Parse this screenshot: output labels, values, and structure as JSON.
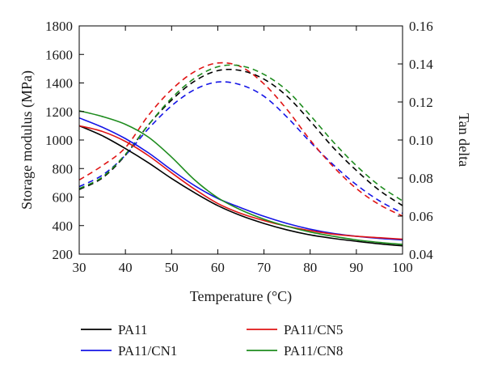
{
  "chart_data": {
    "type": "line",
    "title": "",
    "xlabel": "Temperature (°C)",
    "ylabel": "Storage modulus (MPa)",
    "y2label": "Tan delta",
    "xlim": [
      30,
      100
    ],
    "ylim": [
      200,
      1800
    ],
    "y2lim": [
      0.04,
      0.16
    ],
    "x_ticks": [
      "30",
      "40",
      "50",
      "60",
      "70",
      "80",
      "90",
      "100"
    ],
    "y_ticks": [
      "200",
      "400",
      "600",
      "800",
      "1000",
      "1200",
      "1400",
      "1600",
      "1800"
    ],
    "y2_ticks": [
      "0.04",
      "0.06",
      "0.08",
      "0.10",
      "0.12",
      "0.14",
      "0.16"
    ],
    "grid": false,
    "legend_position": "bottom",
    "x": [
      30,
      35,
      40,
      45,
      50,
      55,
      60,
      65,
      70,
      75,
      80,
      85,
      90,
      95,
      100
    ],
    "storage_modulus_series": [
      {
        "name": "PA11",
        "color": "#000000",
        "axis": "left",
        "values": [
          1100,
          1030,
          940,
          840,
          730,
          630,
          540,
          470,
          415,
          370,
          335,
          310,
          290,
          272,
          258
        ]
      },
      {
        "name": "PA11/CN1",
        "color": "#1414e6",
        "axis": "left",
        "values": [
          1155,
          1090,
          1010,
          910,
          790,
          680,
          590,
          525,
          465,
          415,
          375,
          345,
          325,
          310,
          300
        ]
      },
      {
        "name": "PA11/CN5",
        "color": "#e01414",
        "axis": "left",
        "values": [
          1100,
          1060,
          990,
          890,
          770,
          655,
          555,
          485,
          435,
          395,
          365,
          340,
          325,
          315,
          305
        ]
      },
      {
        "name": "PA11/CN8",
        "color": "#1e8c1e",
        "axis": "left",
        "values": [
          1205,
          1165,
          1110,
          1020,
          880,
          720,
          595,
          510,
          445,
          395,
          355,
          325,
          300,
          282,
          268
        ]
      }
    ],
    "tan_delta_series": [
      {
        "name": "PA11",
        "color": "#000000",
        "axis": "right",
        "values": [
          0.074,
          0.08,
          0.092,
          0.108,
          0.121,
          0.131,
          0.1365,
          0.1365,
          0.132,
          0.123,
          0.11,
          0.096,
          0.084,
          0.0735,
          0.0655
        ]
      },
      {
        "name": "PA11/CN1",
        "color": "#1414e6",
        "axis": "right",
        "values": [
          0.0755,
          0.0815,
          0.092,
          0.106,
          0.118,
          0.1265,
          0.1305,
          0.129,
          0.123,
          0.112,
          0.099,
          0.087,
          0.0765,
          0.068,
          0.0615
        ]
      },
      {
        "name": "PA11/CN5",
        "color": "#e01414",
        "axis": "right",
        "values": [
          0.079,
          0.0865,
          0.096,
          0.113,
          0.1265,
          0.136,
          0.1405,
          0.1385,
          0.1295,
          0.116,
          0.1,
          0.086,
          0.0745,
          0.066,
          0.06
        ]
      },
      {
        "name": "PA11/CN8",
        "color": "#1e8c1e",
        "axis": "right",
        "values": [
          0.0745,
          0.0805,
          0.0925,
          0.108,
          0.122,
          0.1325,
          0.1385,
          0.139,
          0.1345,
          0.126,
          0.113,
          0.099,
          0.0865,
          0.076,
          0.068
        ]
      }
    ],
    "legend": [
      {
        "name": "PA11",
        "color": "#000000"
      },
      {
        "name": "PA11/CN5",
        "color": "#e01414"
      },
      {
        "name": "PA11/CN1",
        "color": "#1414e6"
      },
      {
        "name": "PA11/CN8",
        "color": "#1e8c1e"
      }
    ]
  }
}
